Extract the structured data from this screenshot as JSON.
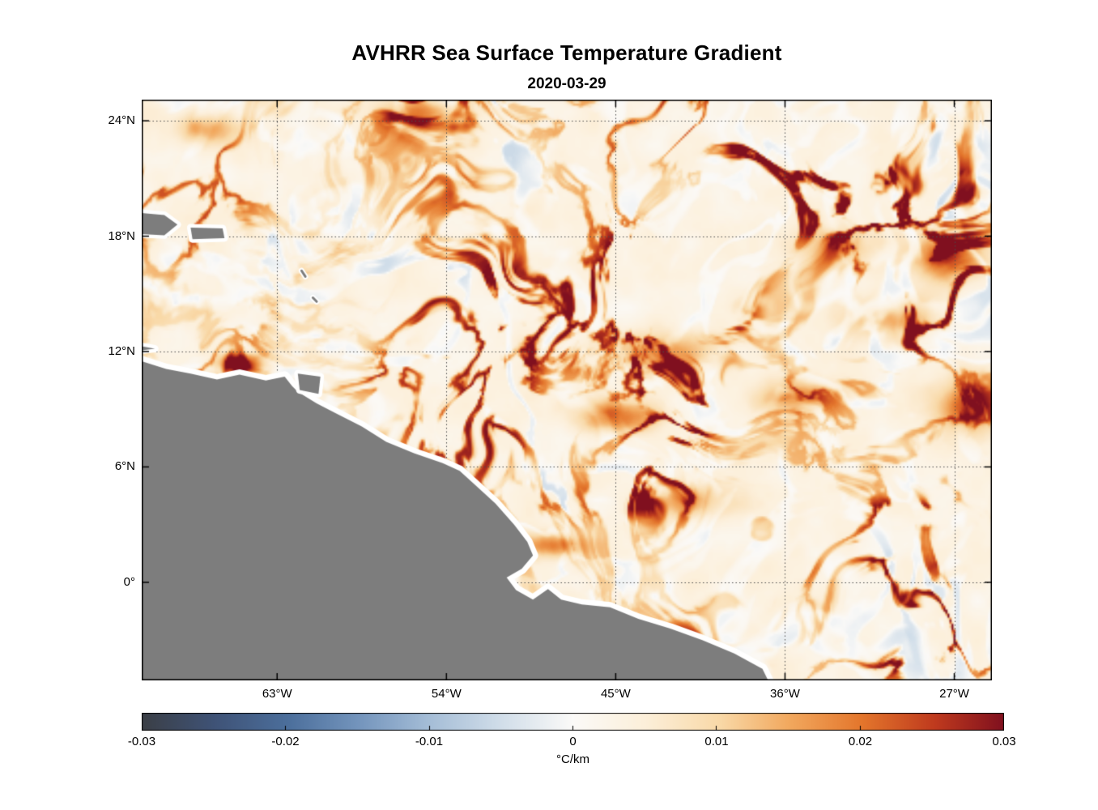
{
  "header": {
    "title": "AVHRR Sea Surface Temperature Gradient",
    "subtitle": "2020-03-29"
  },
  "chart_data": {
    "type": "heatmap",
    "title": "AVHRR Sea Surface Temperature Gradient",
    "subtitle": "2020-03-29",
    "x_axis": {
      "tick_labels": [
        "63°W",
        "54°W",
        "45°W",
        "36°W",
        "27°W"
      ],
      "tick_values": [
        -63,
        -54,
        -45,
        -36,
        -27
      ]
    },
    "y_axis": {
      "tick_labels": [
        "24°N",
        "18°N",
        "12°N",
        "6°N",
        "0°"
      ],
      "tick_values": [
        24,
        18,
        12,
        6,
        0
      ]
    },
    "extent": {
      "lon_min": -70.2,
      "lon_max": -25.0,
      "lat_min": -5.1,
      "lat_max": 25.1
    },
    "grid": {
      "visible": true,
      "style": "dotted",
      "color": "#4a4a4a"
    },
    "colorbar": {
      "label": "°C/km",
      "min": -0.03,
      "max": 0.03,
      "orientation": "horizontal",
      "tick_labels": [
        "-0.03",
        "-0.02",
        "-0.01",
        "0",
        "0.01",
        "0.02",
        "0.03"
      ],
      "tick_values": [
        -0.03,
        -0.02,
        -0.01,
        0,
        0.01,
        0.02,
        0.03
      ],
      "stops": [
        {
          "t": 0.0,
          "c": "#3b3f46"
        },
        {
          "t": 0.085,
          "c": "#3f5377"
        },
        {
          "t": 0.17,
          "c": "#4c6f9c"
        },
        {
          "t": 0.25,
          "c": "#7394bc"
        },
        {
          "t": 0.33,
          "c": "#a3bcd6"
        },
        {
          "t": 0.415,
          "c": "#d0dde9"
        },
        {
          "t": 0.5,
          "c": "#fbfaf8"
        },
        {
          "t": 0.585,
          "c": "#fcefd9"
        },
        {
          "t": 0.67,
          "c": "#f9d9a8"
        },
        {
          "t": 0.75,
          "c": "#f2a95f"
        },
        {
          "t": 0.835,
          "c": "#e4762c"
        },
        {
          "t": 0.92,
          "c": "#bf3a1e"
        },
        {
          "t": 1.0,
          "c": "#80101f"
        }
      ]
    },
    "land": {
      "fill": "#7d7d7d",
      "coast_halo": "#ffffff",
      "mainland": [
        [
          -72.0,
          11.7
        ],
        [
          -70.2,
          11.5
        ],
        [
          -68.9,
          11.1
        ],
        [
          -67.6,
          10.85
        ],
        [
          -66.2,
          10.55
        ],
        [
          -65.0,
          10.8
        ],
        [
          -63.6,
          10.5
        ],
        [
          -62.6,
          10.7
        ],
        [
          -62.2,
          10.2
        ],
        [
          -61.9,
          9.9
        ],
        [
          -60.9,
          9.3
        ],
        [
          -59.9,
          8.8
        ],
        [
          -58.5,
          8.1
        ],
        [
          -57.2,
          7.3
        ],
        [
          -55.7,
          6.7
        ],
        [
          -54.2,
          6.2
        ],
        [
          -53.3,
          5.8
        ],
        [
          -52.4,
          5.0
        ],
        [
          -51.4,
          4.1
        ],
        [
          -50.4,
          3.0
        ],
        [
          -49.7,
          2.1
        ],
        [
          -49.4,
          1.4
        ],
        [
          -50.0,
          0.7
        ],
        [
          -50.8,
          0.25
        ],
        [
          -50.3,
          -0.4
        ],
        [
          -49.4,
          -0.9
        ],
        [
          -48.6,
          -0.35
        ],
        [
          -47.9,
          -0.9
        ],
        [
          -46.8,
          -1.15
        ],
        [
          -45.3,
          -1.3
        ],
        [
          -43.8,
          -1.9
        ],
        [
          -42.1,
          -2.4
        ],
        [
          -40.4,
          -3.0
        ],
        [
          -38.7,
          -3.7
        ],
        [
          -37.2,
          -4.5
        ],
        [
          -36.2,
          -6.5
        ],
        [
          -72.0,
          -6.5
        ]
      ],
      "islands": [
        [
          [
            -72.0,
            19.35
          ],
          [
            -69.0,
            19.1
          ],
          [
            -68.3,
            18.6
          ],
          [
            -69.0,
            18.05
          ],
          [
            -72.0,
            18.2
          ]
        ],
        [
          [
            -67.6,
            18.45
          ],
          [
            -65.9,
            18.4
          ],
          [
            -65.8,
            17.9
          ],
          [
            -67.5,
            17.85
          ]
        ],
        [
          [
            -61.9,
            10.85
          ],
          [
            -60.7,
            10.7
          ],
          [
            -60.8,
            9.8
          ],
          [
            -61.8,
            10.0
          ]
        ],
        [
          [
            -72.0,
            12.6
          ],
          [
            -69.5,
            12.15
          ],
          [
            -72.0,
            11.85
          ]
        ]
      ],
      "islets": [
        [
          [
            -61.7,
            16.2
          ],
          [
            -61.5,
            15.9
          ]
        ],
        [
          [
            -61.1,
            14.8
          ],
          [
            -60.9,
            14.6
          ]
        ]
      ]
    },
    "hotspots": [
      {
        "lon": -64.9,
        "lat": 11.35,
        "rx": 1.2,
        "ry": 0.5,
        "s": 0.034
      },
      {
        "lon": -45.0,
        "lat": 8.6,
        "rx": 1.9,
        "ry": 0.8,
        "s": 0.024
      },
      {
        "lon": -27.3,
        "lat": 16.9,
        "rx": 1.8,
        "ry": 1.1,
        "s": 0.026
      },
      {
        "lon": -29.8,
        "lat": 13.8,
        "rx": 2.4,
        "ry": 1.0,
        "s": 0.02
      },
      {
        "lon": -35.3,
        "lat": 9.6,
        "rx": 2.2,
        "ry": 0.9,
        "s": 0.018
      },
      {
        "lon": -55.2,
        "lat": 24.4,
        "rx": 2.0,
        "ry": 0.7,
        "s": 0.02
      },
      {
        "lon": -66.8,
        "lat": 23.6,
        "rx": 1.6,
        "ry": 0.8,
        "s": 0.018
      },
      {
        "lon": -48.7,
        "lat": 1.9,
        "rx": 1.7,
        "ry": 0.6,
        "s": 0.02
      },
      {
        "lon": -40.8,
        "lat": 4.2,
        "rx": 2.0,
        "ry": 0.9,
        "s": 0.016
      },
      {
        "lon": -26.3,
        "lat": 9.2,
        "rx": 1.6,
        "ry": 1.4,
        "s": 0.02
      },
      {
        "lon": -33.0,
        "lat": 17.5,
        "rx": 2.0,
        "ry": 1.0,
        "s": 0.016
      },
      {
        "lon": -42.5,
        "lat": 12.0,
        "rx": 2.5,
        "ry": 1.0,
        "s": 0.016
      }
    ]
  }
}
